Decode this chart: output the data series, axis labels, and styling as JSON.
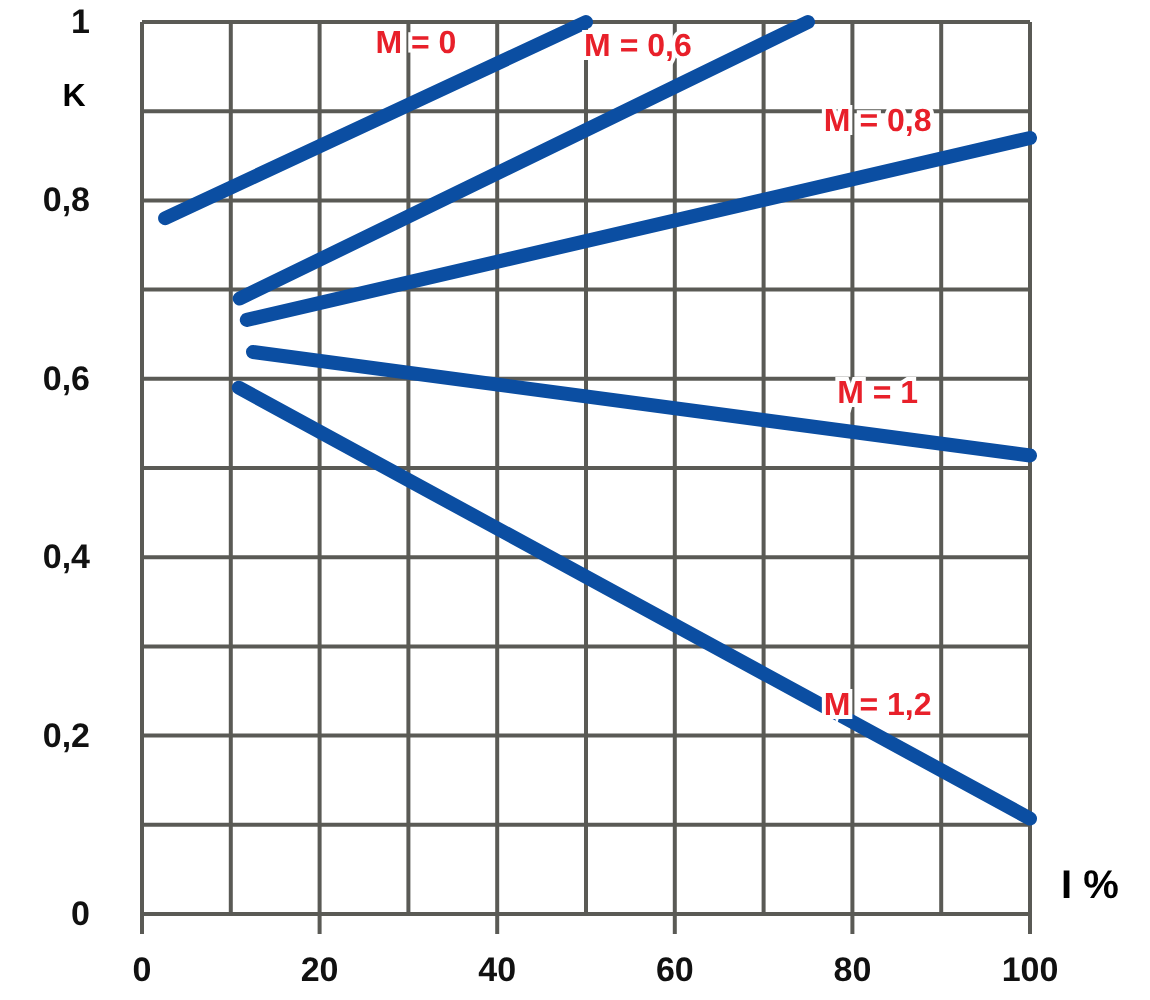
{
  "chart_data": {
    "type": "line",
    "xlabel": "I %",
    "ylabel": "K",
    "xlim": [
      0,
      100
    ],
    "ylim": [
      0,
      1
    ],
    "xticks": [
      0,
      {
        "value": 10,
        "label": null
      },
      20,
      {
        "value": 30,
        "label": null
      },
      40,
      {
        "value": 50,
        "label": null
      },
      60,
      {
        "value": 70,
        "label": null
      },
      80,
      {
        "value": 90,
        "label": null
      },
      100
    ],
    "yticks": [
      0,
      {
        "value": 0.1,
        "label": null
      },
      {
        "value": 0.2,
        "label": "0,2"
      },
      {
        "value": 0.3,
        "label": null
      },
      {
        "value": 0.4,
        "label": "0,4"
      },
      {
        "value": 0.5,
        "label": null
      },
      {
        "value": 0.6,
        "label": "0,6"
      },
      {
        "value": 0.7,
        "label": null
      },
      {
        "value": 0.8,
        "label": "0,8"
      },
      {
        "value": 0.9,
        "label": null
      },
      1
    ],
    "grid": true,
    "marker": "none",
    "line_style": "solid",
    "series": [
      {
        "name": "M = 0",
        "color": "#0b4ea2",
        "x": [
          2.6,
          50
        ],
        "values": [
          0.78,
          1.0
        ]
      },
      {
        "name": "M = 0,6",
        "color": "#0b4ea2",
        "x": [
          11,
          75
        ],
        "values": [
          0.69,
          1.0
        ]
      },
      {
        "name": "M = 0,8",
        "color": "#0b4ea2",
        "x": [
          11.8,
          100
        ],
        "values": [
          0.666,
          0.87
        ]
      },
      {
        "name": "M = 1",
        "color": "#0b4ea2",
        "x": [
          12.5,
          100
        ],
        "values": [
          0.63,
          0.514
        ]
      },
      {
        "name": "M = 1,2",
        "color": "#0b4ea2",
        "x": [
          10.9,
          100
        ],
        "values": [
          0.59,
          0.107
        ]
      }
    ]
  }
}
